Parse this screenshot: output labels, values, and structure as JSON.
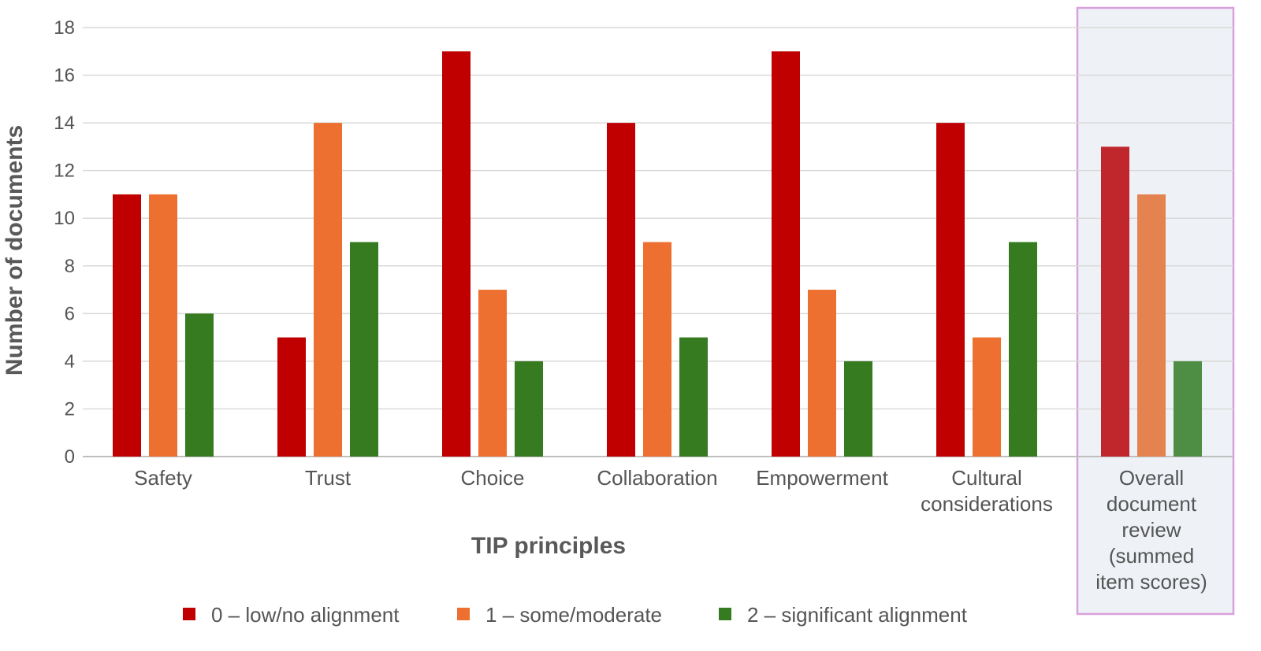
{
  "chart_data": {
    "type": "bar",
    "title": "",
    "xlabel": "TIP principles",
    "ylabel": "Number of documents",
    "ylim": [
      0,
      18
    ],
    "yticks": [
      0,
      2,
      4,
      6,
      8,
      10,
      12,
      14,
      16,
      18
    ],
    "grid": true,
    "legend_position": "bottom",
    "categories": [
      [
        "Safety"
      ],
      [
        "Trust"
      ],
      [
        "Choice"
      ],
      [
        "Collaboration"
      ],
      [
        "Empowerment"
      ],
      [
        "Cultural",
        "considerations"
      ],
      [
        "Overall",
        "document",
        "review",
        "(summed",
        "item scores)"
      ]
    ],
    "highlighted_category_index": 6,
    "series": [
      {
        "name": "0 – low/no alignment",
        "color": "#c00000",
        "highlight_color": "#c0272d",
        "values": [
          11,
          5,
          17,
          14,
          17,
          14,
          13
        ]
      },
      {
        "name": "1 – some/moderate",
        "color": "#ed7030",
        "highlight_color": "#e4834f",
        "values": [
          11,
          14,
          7,
          9,
          7,
          5,
          11
        ]
      },
      {
        "name": "2 – significant alignment",
        "color": "#377b21",
        "highlight_color": "#4e8e44",
        "values": [
          6,
          9,
          4,
          5,
          4,
          9,
          4
        ]
      }
    ],
    "colors": {
      "grid": "#d9d9d9",
      "baseline": "#bfbfbf",
      "highlight_fill": "#eef2f7",
      "highlight_border": "#d9a0dc"
    }
  }
}
